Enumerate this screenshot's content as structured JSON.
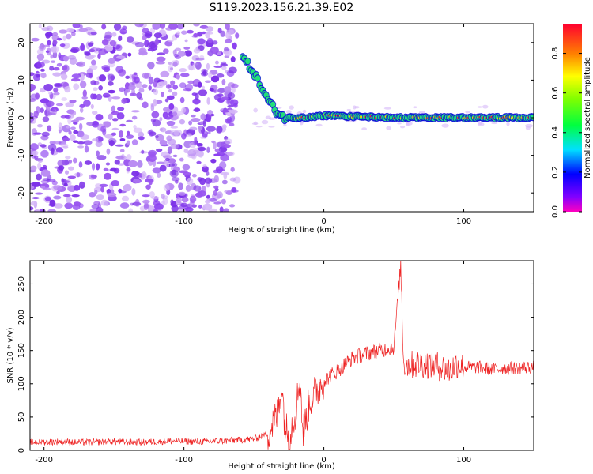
{
  "figure": {
    "title": "S119.2023.156.21.39.E02"
  },
  "chart_data": [
    {
      "type": "heatmap",
      "xlabel": "Height of straight line (km)",
      "ylabel": "Frequency (Hz)",
      "xlim": [
        -210,
        150
      ],
      "ylim": [
        -25,
        25
      ],
      "xticks": [
        -200,
        -100,
        0,
        100
      ],
      "yticks": [
        -20,
        -10,
        0,
        10,
        20
      ],
      "colorbar": {
        "label": "Normalized spectral amplitude",
        "range": [
          0.0,
          0.95
        ],
        "ticks": [
          0.0,
          0.2,
          0.4,
          0.6,
          0.8
        ],
        "colormap": "gist_rainbow"
      },
      "features": {
        "noise_region_x": [
          -210,
          -62
        ],
        "signal_ridge": [
          {
            "x": -58,
            "f": 16
          },
          {
            "x": -50,
            "f": 12
          },
          {
            "x": -42,
            "f": 6
          },
          {
            "x": -35,
            "f": 2
          },
          {
            "x": -28,
            "f": 0
          },
          {
            "x": -15,
            "f": 0
          },
          {
            "x": 0,
            "f": 0.5
          },
          {
            "x": 50,
            "f": 0
          },
          {
            "x": 150,
            "f": 0
          }
        ]
      },
      "colors": {
        "noise": "#7a2de0",
        "ridge_core": "#ff2a2a",
        "ridge_edge": "#22e07a"
      }
    },
    {
      "type": "line",
      "xlabel": "Height of straight line (km)",
      "ylabel": "SNR (10 * v/v)",
      "xlim": [
        -210,
        150
      ],
      "ylim": [
        0,
        285
      ],
      "xticks": [
        -200,
        -100,
        0,
        100
      ],
      "yticks": [
        0,
        50,
        100,
        150,
        200,
        250
      ],
      "series": [
        {
          "color": "#ee2222",
          "x": [
            -210,
            -190,
            -170,
            -150,
            -130,
            -110,
            -90,
            -70,
            -50,
            -40,
            -33,
            -30,
            -28,
            -25,
            -20,
            -17,
            -15,
            -12,
            -10,
            -5,
            0,
            10,
            20,
            30,
            40,
            50,
            55,
            56,
            57,
            60,
            70,
            80,
            90,
            95,
            100,
            110,
            120,
            130,
            140,
            150
          ],
          "y": [
            12,
            13,
            12,
            13,
            12,
            14,
            13,
            14,
            17,
            25,
            55,
            100,
            40,
            20,
            60,
            110,
            25,
            55,
            75,
            90,
            105,
            120,
            138,
            145,
            150,
            155,
            280,
            200,
            130,
            128,
            130,
            128,
            120,
            130,
            125,
            125,
            122,
            123,
            124,
            125
          ]
        }
      ]
    }
  ]
}
